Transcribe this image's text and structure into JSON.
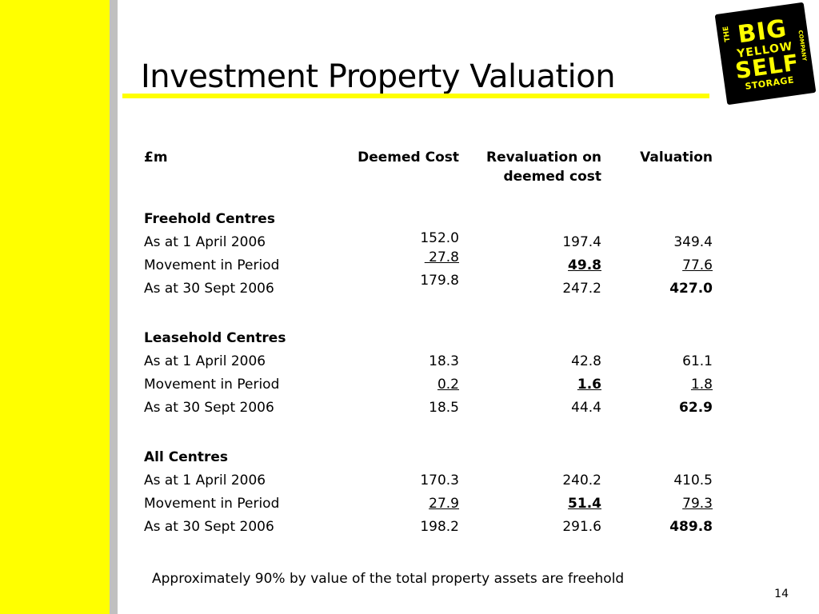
{
  "title": "Investment Property Valuation",
  "logo": {
    "the": "THE",
    "big": "BIG",
    "yellow": "YELLOW",
    "self": "SELF",
    "storage": "STORAGE",
    "company": "COMPANY"
  },
  "table": {
    "headers": {
      "label": "£m",
      "deemed_cost": "Deemed Cost",
      "revaluation_line1": "Revaluation on",
      "revaluation_line2": "deemed cost",
      "valuation": "Valuation"
    },
    "sections": [
      {
        "title": "Freehold Centres",
        "rows": [
          {
            "label": "As at 1 April 2006",
            "deemed_cost": "152.0",
            "revaluation": "197.4",
            "valuation": "349.4"
          },
          {
            "label": "Movement in Period",
            "deemed_cost": " 27.8",
            "revaluation": "49.8",
            "valuation": "77.6"
          },
          {
            "label": "As at 30 Sept 2006",
            "deemed_cost": "179.8",
            "revaluation": "247.2",
            "valuation": "427.0"
          }
        ]
      },
      {
        "title": "Leasehold Centres",
        "rows": [
          {
            "label": "As at 1 April 2006",
            "deemed_cost": "18.3",
            "revaluation": "42.8",
            "valuation": "61.1"
          },
          {
            "label": "Movement in Period",
            "deemed_cost": "0.2",
            "revaluation": "1.6",
            "valuation": "1.8"
          },
          {
            "label": "As at 30 Sept 2006",
            "deemed_cost": "18.5",
            "revaluation": "44.4",
            "valuation": "62.9"
          }
        ]
      },
      {
        "title": "All Centres",
        "rows": [
          {
            "label": "As at 1 April 2006",
            "deemed_cost": "170.3",
            "revaluation": "240.2",
            "valuation": "410.5"
          },
          {
            "label": "Movement in Period",
            "deemed_cost": "27.9",
            "revaluation": "51.4",
            "valuation": "79.3"
          },
          {
            "label": "As at 30 Sept 2006",
            "deemed_cost": "198.2",
            "revaluation": "291.6",
            "valuation": "489.8"
          }
        ]
      }
    ]
  },
  "footnote": "Approximately 90% by value of the total property assets are freehold",
  "page_number": "14",
  "colors": {
    "accent_yellow": "#ffff00",
    "side_grey": "#c0c0c0"
  }
}
